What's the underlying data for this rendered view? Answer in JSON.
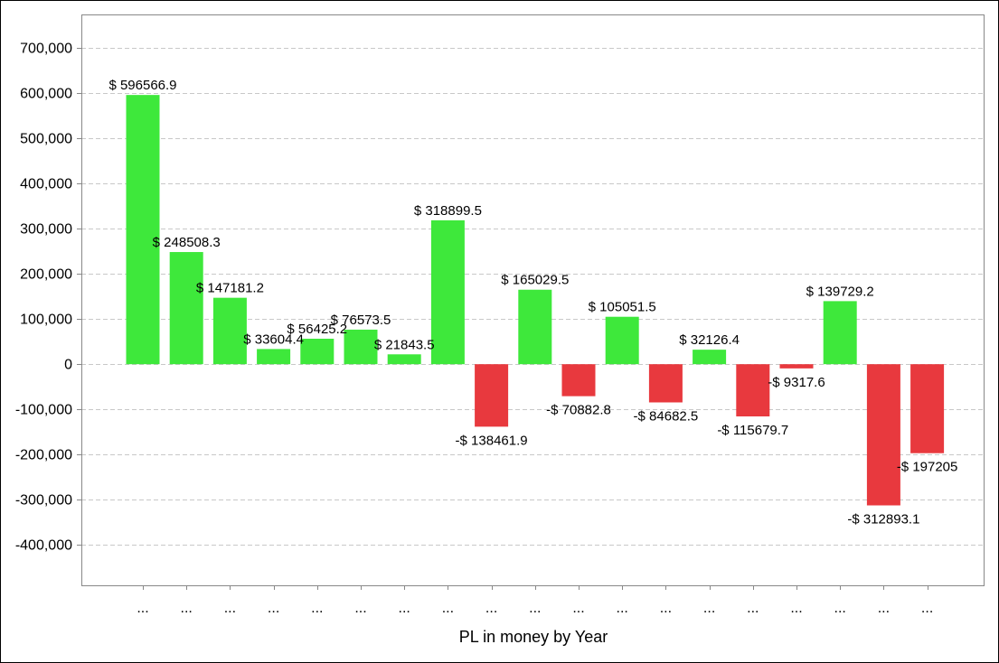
{
  "chart_data": {
    "type": "bar",
    "title": "",
    "xlabel": "PL in money by Year",
    "ylabel": "",
    "ylim": [
      -490000,
      775000
    ],
    "grid": true,
    "legend": "none",
    "y_ticks": [
      700000,
      600000,
      500000,
      400000,
      300000,
      200000,
      100000,
      0,
      -100000,
      -200000,
      -300000,
      -400000
    ],
    "y_tick_labels": [
      "700,000",
      "600,000",
      "500,000",
      "400,000",
      "300,000",
      "200,000",
      "100,000",
      "0",
      "-100,000",
      "-200,000",
      "-300,000",
      "-400,000"
    ],
    "categories": [
      "...",
      "...",
      "...",
      "...",
      "...",
      "...",
      "...",
      "...",
      "...",
      "...",
      "...",
      "...",
      "...",
      "...",
      "...",
      "...",
      "...",
      "...",
      "..."
    ],
    "values": [
      596566.9,
      248508.3,
      147181.2,
      33604.4,
      56425.2,
      76573.5,
      21843.5,
      318899.5,
      -138461.9,
      165029.5,
      -70882.8,
      105051.5,
      -84682.5,
      32126.4,
      -115679.7,
      -9317.6,
      139729.2,
      -312893.1,
      -197205
    ],
    "data_labels": [
      "$ 596566.9",
      "$ 248508.3",
      "$ 147181.2",
      "$ 33604.4",
      "$ 56425.2",
      "$ 76573.5",
      "$ 21843.5",
      "$ 318899.5",
      "-$ 138461.9",
      "$ 165029.5",
      "-$ 70882.8",
      "$ 105051.5",
      "-$ 84682.5",
      "$ 32126.4",
      "-$ 115679.7",
      "-$ 9317.6",
      "$ 139729.2",
      "-$ 312893.1",
      "-$ 197205"
    ],
    "colors": {
      "positive": "#3ee83b",
      "negative": "#e8393e",
      "axis": "#888888",
      "grid": "#c8c8c8"
    }
  }
}
